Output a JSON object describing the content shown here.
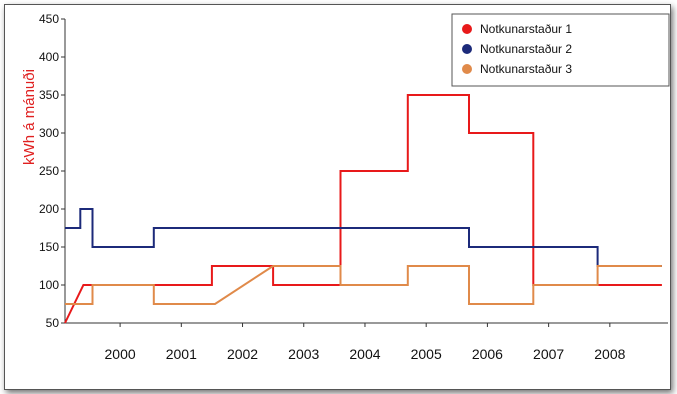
{
  "chart_data": {
    "type": "line",
    "step": true,
    "ylabel": "kWh á mánuði",
    "ylabel_color": "#e02020",
    "xlabel": "",
    "ylim": [
      50,
      450
    ],
    "xlim": [
      1999.1,
      2008.95
    ],
    "yticks": [
      50,
      100,
      150,
      200,
      250,
      300,
      350,
      400,
      450
    ],
    "xticks": [
      2000,
      2001,
      2002,
      2003,
      2004,
      2005,
      2006,
      2007,
      2008
    ],
    "grid": false,
    "legend_position": "top-right",
    "series": [
      {
        "name": "Notkunarstaður 1",
        "color": "#e8191a",
        "points": [
          [
            1999.1,
            50
          ],
          [
            1999.4,
            100
          ],
          [
            2000.0,
            100
          ],
          [
            2001.0,
            100
          ],
          [
            2001.5,
            100
          ],
          [
            2001.5,
            125
          ],
          [
            2002.5,
            125
          ],
          [
            2002.5,
            100
          ],
          [
            2003.6,
            100
          ],
          [
            2003.6,
            250
          ],
          [
            2004.7,
            250
          ],
          [
            2004.7,
            350
          ],
          [
            2005.7,
            350
          ],
          [
            2005.7,
            300
          ],
          [
            2006.75,
            300
          ],
          [
            2006.75,
            100
          ],
          [
            2008.85,
            100
          ]
        ]
      },
      {
        "name": "Notkunarstaður 2",
        "color": "#1c2a7a",
        "points": [
          [
            1999.1,
            175
          ],
          [
            1999.35,
            175
          ],
          [
            1999.35,
            200
          ],
          [
            1999.55,
            200
          ],
          [
            1999.55,
            150
          ],
          [
            2000.55,
            150
          ],
          [
            2000.55,
            175
          ],
          [
            2005.7,
            175
          ],
          [
            2005.7,
            150
          ],
          [
            2007.8,
            150
          ],
          [
            2007.8,
            125
          ],
          [
            2008.85,
            125
          ]
        ]
      },
      {
        "name": "Notkunarstaður 3",
        "color": "#e08a4a",
        "points": [
          [
            1999.1,
            75
          ],
          [
            1999.55,
            75
          ],
          [
            1999.55,
            100
          ],
          [
            2000.55,
            100
          ],
          [
            2000.55,
            75
          ],
          [
            2001.55,
            75
          ],
          [
            2002.5,
            125
          ],
          [
            2003.6,
            125
          ],
          [
            2003.6,
            100
          ],
          [
            2004.7,
            100
          ],
          [
            2004.7,
            125
          ],
          [
            2005.7,
            125
          ],
          [
            2005.7,
            75
          ],
          [
            2006.75,
            75
          ],
          [
            2006.75,
            100
          ],
          [
            2007.8,
            100
          ],
          [
            2007.8,
            125
          ],
          [
            2008.85,
            125
          ]
        ]
      }
    ]
  }
}
